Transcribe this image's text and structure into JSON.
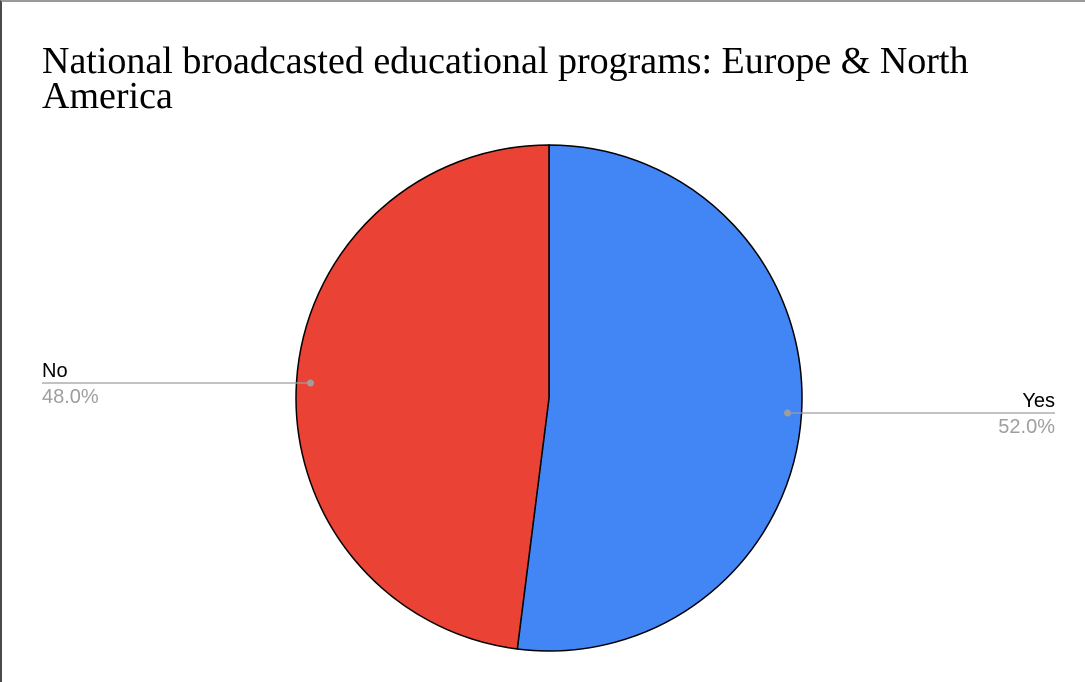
{
  "chart_data": {
    "type": "pie",
    "title": "National broadcasted educational programs: Europe & North America",
    "slices": [
      {
        "label": "Yes",
        "value": 52.0,
        "value_label": "52.0%",
        "color": "#4285f4",
        "label_side": "right"
      },
      {
        "label": "No",
        "value": 48.0,
        "value_label": "48.0%",
        "color": "#ea4335",
        "label_side": "left"
      }
    ],
    "start_angle": "12 o'clock",
    "direction": "clockwise",
    "slice_outline_color": "#000000",
    "leader_line_color": "#9e9e9e",
    "label_color": "#000000",
    "value_label_color": "#9e9e9e"
  }
}
